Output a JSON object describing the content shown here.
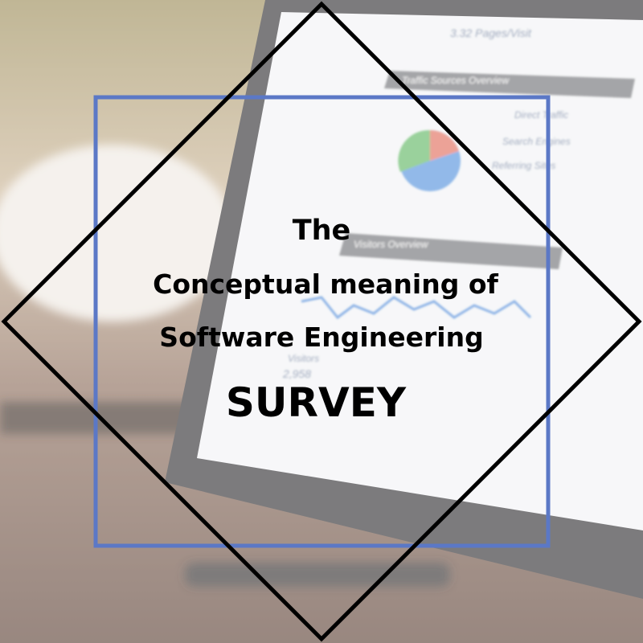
{
  "title": {
    "line1": "The",
    "line2": "Conceptual meaning of",
    "line3": "Software Engineering",
    "line4": "SURVEY"
  },
  "background_screen": {
    "pages_per_visit": "3.32 Pages/Visit",
    "traffic_heading": "Traffic Sources Overview",
    "legend": [
      "Direct Traffic",
      "Search Engines",
      "Referring Sites"
    ],
    "visitors_heading": "Visitors Overview",
    "visitors_label": "Visitors",
    "visitors_count": "2,958"
  }
}
